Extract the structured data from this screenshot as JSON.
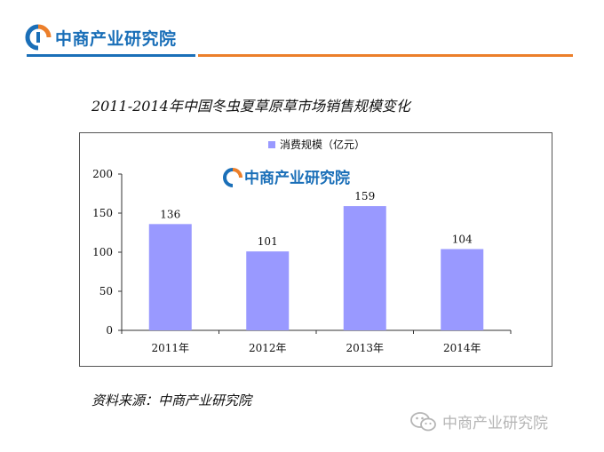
{
  "header": {
    "brand": "中商产业研究院",
    "brand_color": "#1a6fb8",
    "accent_color": "#ec7f2a"
  },
  "chart_title": "2011-2014年中国冬虫夏草原草市场销售规模变化",
  "source": "资料来源：中商产业研究院",
  "watermark": "中商产业研究院",
  "inner_logo": "中商产业研究院",
  "chart_data": {
    "type": "bar",
    "categories": [
      "2011年",
      "2012年",
      "2013年",
      "2014年"
    ],
    "series": [
      {
        "name": "消费规模（亿元）",
        "values": [
          136,
          101,
          159,
          104
        ],
        "color": "#9999ff"
      }
    ],
    "ylim": [
      0,
      200
    ],
    "yticks": [
      0,
      50,
      100,
      150,
      200
    ],
    "legend_position": "top-center",
    "data_labels": true,
    "grid": false
  }
}
